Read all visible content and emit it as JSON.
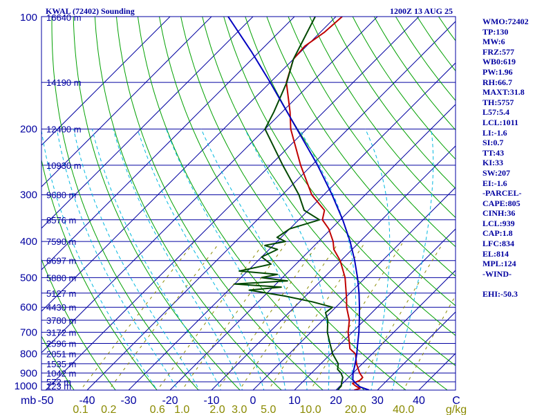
{
  "chart_data": {
    "type": "line",
    "title_left": "KWAL (72402) Sounding",
    "title_right": "1200Z 13 AUG 25",
    "pressure_unit_label": "mb",
    "temp_unit_label": "C",
    "mixing_ratio_unit_label": "g/kg",
    "pressure_range": [
      1000,
      100
    ],
    "temperature_range_at_base": [
      -50,
      50
    ],
    "pressure_labels": [
      "100",
      "200",
      "300",
      "400",
      "500",
      "600",
      "700",
      "800",
      "900",
      "1000"
    ],
    "height_labels": [
      {
        "p": 100,
        "text": "16640 m"
      },
      {
        "p": 150,
        "text": "14190 m"
      },
      {
        "p": 200,
        "text": "12400 m"
      },
      {
        "p": 250,
        "text": "10930 m"
      },
      {
        "p": 300,
        "text": "9680 m"
      },
      {
        "p": 350,
        "text": "8576 m"
      },
      {
        "p": 400,
        "text": "7590 m"
      },
      {
        "p": 450,
        "text": "6697 m"
      },
      {
        "p": 500,
        "text": "5880 m"
      },
      {
        "p": 550,
        "text": "5127 m"
      },
      {
        "p": 600,
        "text": "4430 m"
      },
      {
        "p": 650,
        "text": "3780 m"
      },
      {
        "p": 700,
        "text": "3172 m"
      },
      {
        "p": 750,
        "text": "2596 m"
      },
      {
        "p": 800,
        "text": "2051 m"
      },
      {
        "p": 850,
        "text": "1535 m"
      },
      {
        "p": 900,
        "text": "1042 m"
      },
      {
        "p": 950,
        "text": "572 m"
      },
      {
        "p": 1000,
        "text": "123 m"
      }
    ],
    "temp_tick_labels": [
      "-50",
      "-40",
      "-30",
      "-20",
      "-10",
      "0",
      "10",
      "20",
      "30",
      "40"
    ],
    "mixing_ratio_labels": [
      "0.1",
      "0.2",
      "0.6",
      "1.0",
      "2.0",
      "3.0",
      "5.0",
      "10.0",
      "20.0",
      "40.0"
    ],
    "isotherms_c": [
      -110,
      -100,
      -90,
      -80,
      -70,
      -60,
      -50,
      -40,
      -30,
      -20,
      -10,
      0,
      10,
      20,
      30,
      40,
      50
    ],
    "dry_adiabats_k": [
      230,
      240,
      250,
      260,
      270,
      280,
      290,
      300,
      310,
      320,
      330,
      340,
      350,
      360,
      370,
      380,
      390,
      400,
      410,
      420,
      430,
      440,
      450,
      460,
      470
    ],
    "moist_adiabats_c": [
      -20,
      -15,
      -10,
      -5,
      0,
      5,
      10,
      15,
      20,
      25,
      30,
      35
    ],
    "mixing_ratios_gkg": [
      0.1,
      0.2,
      0.6,
      1.0,
      2.0,
      3.0,
      5.0,
      10.0,
      20.0,
      40.0
    ],
    "series": [
      {
        "key": "temperature",
        "color": "#c00000",
        "points": [
          [
            1000,
            24.4
          ],
          [
            990,
            25.4
          ],
          [
            975,
            23.8
          ],
          [
            960,
            22.4
          ],
          [
            943,
            23.4
          ],
          [
            925,
            23.4
          ],
          [
            900,
            21.6
          ],
          [
            850,
            18.6
          ],
          [
            800,
            16.0
          ],
          [
            775,
            13.4
          ],
          [
            750,
            12.0
          ],
          [
            700,
            9.0
          ],
          [
            650,
            6.4
          ],
          [
            600,
            2.6
          ],
          [
            570,
            0.6
          ],
          [
            500,
            -4.9
          ],
          [
            450,
            -10.2
          ],
          [
            420,
            -14.4
          ],
          [
            400,
            -16.5
          ],
          [
            370,
            -20.6
          ],
          [
            350,
            -24.3
          ],
          [
            330,
            -26.1
          ],
          [
            300,
            -32.9
          ],
          [
            250,
            -42.7
          ],
          [
            200,
            -53.8
          ],
          [
            180,
            -58.1
          ],
          [
            150,
            -66.1
          ],
          [
            130,
            -70.0
          ],
          [
            120,
            -70.4
          ],
          [
            110,
            -69.0
          ],
          [
            100,
            -68.5
          ]
        ]
      },
      {
        "key": "dewpoint",
        "color": "#004800",
        "points": [
          [
            1000,
            20.4
          ],
          [
            975,
            20.3
          ],
          [
            950,
            19.4
          ],
          [
            925,
            18.6
          ],
          [
            900,
            17.1
          ],
          [
            880,
            15.4
          ],
          [
            850,
            14.2
          ],
          [
            800,
            10.5
          ],
          [
            750,
            7.3
          ],
          [
            700,
            4.0
          ],
          [
            650,
            1.2
          ],
          [
            620,
            -1.2
          ],
          [
            600,
            -0.8
          ],
          [
            580,
            -7.0
          ],
          [
            560,
            -15.0
          ],
          [
            540,
            -25.0
          ],
          [
            530,
            -18.0
          ],
          [
            520,
            -30.0
          ],
          [
            510,
            -18.0
          ],
          [
            500,
            -25.0
          ],
          [
            490,
            -22.0
          ],
          [
            480,
            -32.0
          ],
          [
            460,
            -26.0
          ],
          [
            440,
            -30.0
          ],
          [
            420,
            -28.0
          ],
          [
            410,
            -32.0
          ],
          [
            400,
            -28.0
          ],
          [
            390,
            -31.0
          ],
          [
            370,
            -30.0
          ],
          [
            350,
            -25.0
          ],
          [
            330,
            -31.0
          ],
          [
            300,
            -36.0
          ],
          [
            250,
            -47.0
          ],
          [
            200,
            -60.0
          ],
          [
            180,
            -62.0
          ],
          [
            150,
            -66.0
          ],
          [
            130,
            -70.0
          ],
          [
            100,
            -75.0
          ]
        ]
      },
      {
        "key": "parcel",
        "color": "#0000c0",
        "points": [
          [
            1000,
            28.0
          ],
          [
            980,
            25.0
          ],
          [
            960,
            23.2
          ],
          [
            939,
            21.6
          ],
          [
            900,
            20.0
          ],
          [
            850,
            18.3
          ],
          [
            800,
            16.3
          ],
          [
            750,
            14.0
          ],
          [
            700,
            11.6
          ],
          [
            650,
            8.8
          ],
          [
            600,
            5.7
          ],
          [
            550,
            2.2
          ],
          [
            500,
            -1.9
          ],
          [
            450,
            -6.7
          ],
          [
            400,
            -12.4
          ],
          [
            350,
            -19.4
          ],
          [
            300,
            -28.0
          ],
          [
            250,
            -38.6
          ],
          [
            200,
            -52.3
          ],
          [
            150,
            -70.0
          ],
          [
            124,
            -82.0
          ],
          [
            100,
            -96.0
          ]
        ]
      }
    ]
  },
  "indices": [
    "WMO:72402",
    "TP:130",
    "MW:6",
    "FRZ:577",
    "WB0:619",
    "PW:1.96",
    "RH:66.7",
    "MAXT:31.8",
    "TH:5757",
    "L57:5.4",
    "LCL:1011",
    "LI:-1.6",
    "SI:0.7",
    "TT:43",
    "KI:33",
    "SW:207",
    "EI:-1.6",
    "-PARCEL-",
    "CAPE:805",
    "CINH:36",
    "LCL:939",
    "CAP:1.8",
    "LFC:834",
    "EL:814",
    "MPL:124",
    "-WIND-",
    "",
    "EHI:-50.3"
  ],
  "colors": {
    "frame": "#0000a0",
    "isobar": "#0000a0",
    "isotherm": "#0000a0",
    "dry_adiabat": "#00a000",
    "moist_adiabat": "#00b8e0",
    "mixing_ratio": "#8a8a00",
    "temperature": "#c00000",
    "dewpoint": "#004800",
    "parcel": "#0000c0"
  }
}
